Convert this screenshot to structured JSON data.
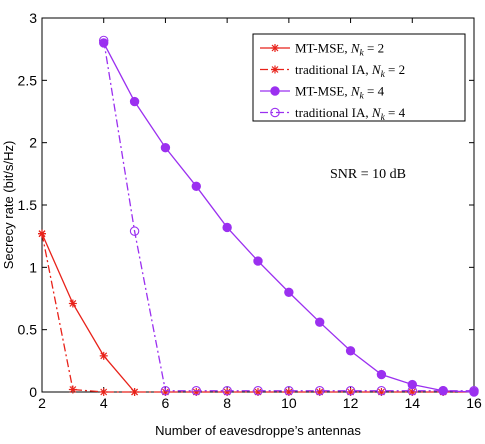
{
  "chart_data": {
    "type": "line",
    "xlabel": "Number of eavesdroppe’s antennas",
    "ylabel": "Secrecy rate (bit/s/Hz)",
    "xlim": [
      2,
      16
    ],
    "ylim": [
      0,
      3
    ],
    "xticks": [
      "2",
      "4",
      "6",
      "8",
      "10",
      "12",
      "14",
      "16"
    ],
    "yticks": [
      "0",
      "0.5",
      "1",
      "1.5",
      "2",
      "2.5",
      "3"
    ],
    "grid": false,
    "legend_position": "top-right",
    "annotation": "SNR = 10 dB",
    "series": [
      {
        "name": "MT-MSE, N_k = 2",
        "legend_main": "MT-MSE, ",
        "legend_var": "N",
        "legend_sub": "k",
        "legend_rest": " = 2",
        "color": "#e8221a",
        "linestyle": "solid",
        "marker": "star",
        "x": [
          2,
          3,
          4,
          5
        ],
        "y": [
          1.27,
          0.71,
          0.29,
          0.0
        ]
      },
      {
        "name": "traditional IA, N_k = 2",
        "legend_main": "traditional IA, ",
        "legend_var": "N",
        "legend_sub": "k",
        "legend_rest": " = 2",
        "color": "#e8221a",
        "linestyle": "dashdot",
        "marker": "star",
        "x": [
          2,
          3,
          4,
          5,
          6,
          7,
          8,
          9,
          10,
          11,
          12,
          13,
          14,
          15,
          16
        ],
        "y": [
          1.27,
          0.02,
          0.0,
          0.0,
          0.0,
          0.0,
          0.0,
          0.0,
          0.0,
          0.0,
          0.0,
          0.0,
          0.0,
          0.0,
          0.0
        ]
      },
      {
        "name": "MT-MSE, N_k = 4",
        "legend_main": "MT-MSE, ",
        "legend_var": "N",
        "legend_sub": "k",
        "legend_rest": " = 4",
        "color": "#9b30f0",
        "linestyle": "solid",
        "marker": "filled-circle",
        "x": [
          4,
          5,
          6,
          7,
          8,
          9,
          10,
          11,
          12,
          13,
          14,
          15,
          16
        ],
        "y": [
          2.8,
          2.33,
          1.96,
          1.65,
          1.32,
          1.05,
          0.8,
          0.56,
          0.33,
          0.14,
          0.06,
          0.01,
          0.0
        ]
      },
      {
        "name": "traditional IA, N_k = 4",
        "legend_main": "traditional IA, ",
        "legend_var": "N",
        "legend_sub": "k",
        "legend_rest": " = 4",
        "color": "#9b30f0",
        "linestyle": "dashdot",
        "marker": "open-circle",
        "x": [
          4,
          5,
          6,
          7,
          8,
          9,
          10,
          11,
          12,
          13,
          14,
          15,
          16
        ],
        "y": [
          2.82,
          1.29,
          0.01,
          0.01,
          0.01,
          0.01,
          0.01,
          0.01,
          0.01,
          0.01,
          0.01,
          0.01,
          0.01
        ]
      }
    ]
  }
}
